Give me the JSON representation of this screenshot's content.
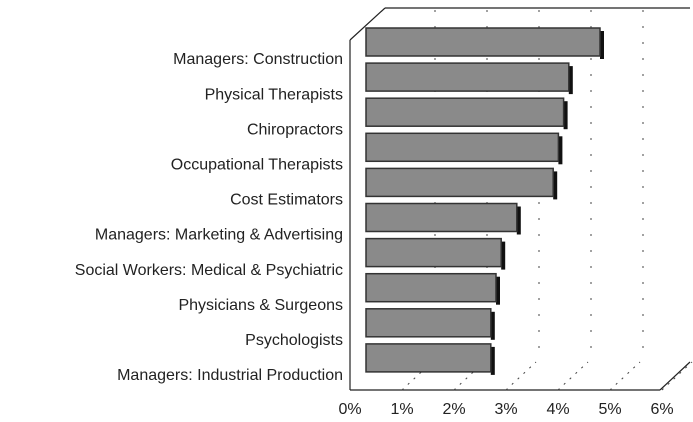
{
  "chart_data": {
    "type": "bar",
    "orientation": "horizontal",
    "categories": [
      "Managers: Construction",
      "Physical Therapists",
      "Chiropractors",
      "Occupational Therapists",
      "Cost Estimators",
      "Managers: Marketing & Advertising",
      "Social Workers: Medical & Psychiatric",
      "Physicians & Surgeons",
      "Psychologists",
      "Managers: Industrial Production"
    ],
    "values": [
      4.5,
      3.9,
      3.8,
      3.7,
      3.6,
      2.9,
      2.6,
      2.5,
      2.4,
      2.4
    ],
    "color": "#8a8a8a",
    "xlim": [
      0,
      6
    ],
    "xticks": [
      {
        "value": 0,
        "label": "0%"
      },
      {
        "value": 1,
        "label": "1%"
      },
      {
        "value": 2,
        "label": "2%"
      },
      {
        "value": 3,
        "label": "3%"
      },
      {
        "value": 4,
        "label": "4%"
      },
      {
        "value": 5,
        "label": "5%"
      },
      {
        "value": 6,
        "label": "6%"
      }
    ]
  }
}
